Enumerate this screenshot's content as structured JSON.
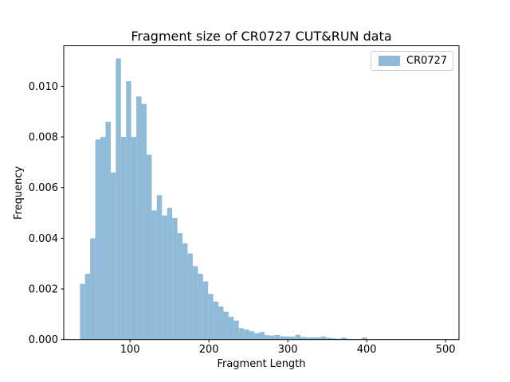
{
  "chart_data": {
    "type": "bar",
    "subtype": "histogram",
    "title": "Fragment size of CR0727 CUT&RUN data",
    "xlabel": "Fragment Length",
    "ylabel": "Frequency",
    "legend": {
      "label": "CR0727",
      "position": "upper right"
    },
    "bar_color": "#8fbbd9",
    "axis_color": "#000000",
    "legend_border_color": "#cccccc",
    "grid": false,
    "xlim": [
      16,
      517
    ],
    "ylim": [
      0,
      0.0116
    ],
    "xticks": [
      100,
      200,
      300,
      400,
      500
    ],
    "ytick_values": [
      0,
      0.002,
      0.004,
      0.006,
      0.008,
      0.01
    ],
    "ytick_labels": [
      "0.000",
      "0.002",
      "0.004",
      "0.006",
      "0.008",
      "0.010"
    ],
    "bin_width": 6.5,
    "bin_left": [
      36.5,
      43,
      49.5,
      56,
      62.5,
      69,
      75.5,
      82,
      88.5,
      95,
      101.5,
      108,
      114.5,
      121,
      127.5,
      134,
      140.5,
      147,
      153.5,
      160,
      166.5,
      173,
      179.5,
      186,
      192.5,
      199,
      205.5,
      212,
      218.5,
      225,
      231.5,
      238,
      244.5,
      251,
      257.5,
      264,
      270.5,
      277,
      283.5,
      290,
      296.5,
      303,
      309.5,
      316,
      322.5,
      329,
      335.5,
      342,
      348.5,
      355,
      361.5,
      368,
      374.5,
      381,
      387.5,
      394
    ],
    "frequency": [
      0.0022,
      0.0026,
      0.004,
      0.0079,
      0.008,
      0.0086,
      0.0066,
      0.0111,
      0.008,
      0.0102,
      0.008,
      0.0096,
      0.0093,
      0.0073,
      0.0051,
      0.0057,
      0.0049,
      0.0052,
      0.0048,
      0.0042,
      0.0038,
      0.0034,
      0.0029,
      0.0026,
      0.0023,
      0.0018,
      0.0015,
      0.0013,
      0.0011,
      0.0009,
      0.00075,
      0.00045,
      0.0004,
      0.00033,
      0.00025,
      0.0003,
      0.00018,
      0.00016,
      0.00018,
      0.00013,
      0.00012,
      0.00012,
      0.00019,
      0.0001,
      9e-05,
      9e-05,
      9e-05,
      0.00012,
      7e-05,
      5e-05,
      3e-05,
      8e-05,
      2e-05,
      0,
      0,
      8e-05
    ]
  }
}
